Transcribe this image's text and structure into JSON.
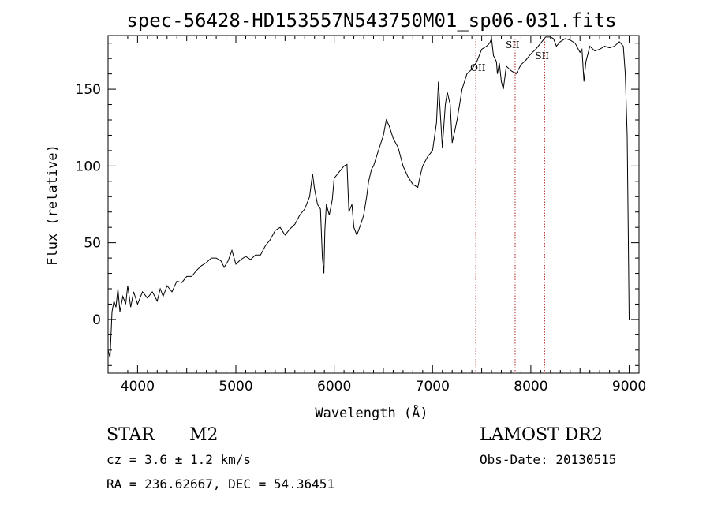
{
  "chart_data": {
    "type": "line",
    "title": "spec-56428-HD153557N543750M01_sp06-031.fits",
    "xlabel": "Wavelength (Å)",
    "ylabel": "Flux (relative)",
    "xlim": [
      3700,
      9100
    ],
    "ylim": [
      -35,
      185
    ],
    "xticks": [
      4000,
      5000,
      6000,
      7000,
      8000,
      9000
    ],
    "yticks": [
      0,
      50,
      100,
      150
    ],
    "grid": false,
    "line_color": "#000000",
    "marker_color": "#b22222",
    "series": [
      {
        "x": [
          3700,
          3720,
          3740,
          3760,
          3780,
          3800,
          3820,
          3850,
          3880,
          3900,
          3930,
          3960,
          4000,
          4050,
          4100,
          4150,
          4200,
          4230,
          4260,
          4300,
          4350,
          4400,
          4450,
          4500,
          4550,
          4600,
          4650,
          4700,
          4750,
          4800,
          4850,
          4880,
          4920,
          4960,
          5000,
          5050,
          5100,
          5150,
          5200,
          5250,
          5300,
          5350,
          5400,
          5450,
          5500,
          5550,
          5600,
          5650,
          5700,
          5750,
          5780,
          5800,
          5830,
          5860,
          5880,
          5895,
          5905,
          5920,
          5950,
          5980,
          6000,
          6050,
          6100,
          6130,
          6150,
          6180,
          6200,
          6230,
          6270,
          6300,
          6330,
          6350,
          6380,
          6400,
          6450,
          6500,
          6530,
          6560,
          6600,
          6650,
          6700,
          6750,
          6800,
          6850,
          6880,
          6900,
          6950,
          7000,
          7040,
          7060,
          7100,
          7130,
          7150,
          7180,
          7200,
          7250,
          7300,
          7350,
          7400,
          7450,
          7500,
          7550,
          7580,
          7600,
          7620,
          7650,
          7660,
          7680,
          7700,
          7720,
          7750,
          7800,
          7850,
          7900,
          7950,
          8000,
          8050,
          8100,
          8150,
          8200,
          8230,
          8260,
          8300,
          8350,
          8400,
          8450,
          8500,
          8520,
          8540,
          8560,
          8600,
          8650,
          8700,
          8750,
          8800,
          8850,
          8900,
          8940,
          8960,
          8980,
          8990,
          9000,
          9005
        ],
        "y": [
          -20,
          -25,
          5,
          12,
          8,
          20,
          5,
          15,
          10,
          22,
          8,
          18,
          10,
          18,
          14,
          18,
          12,
          20,
          15,
          22,
          18,
          25,
          24,
          28,
          28,
          32,
          35,
          37,
          40,
          40,
          38,
          34,
          38,
          45,
          36,
          39,
          41,
          39,
          42,
          42,
          48,
          52,
          58,
          60,
          55,
          59,
          62,
          68,
          72,
          80,
          95,
          85,
          75,
          72,
          40,
          30,
          58,
          75,
          68,
          78,
          92,
          96,
          100,
          101,
          70,
          75,
          60,
          55,
          62,
          68,
          80,
          90,
          98,
          100,
          110,
          120,
          130,
          126,
          118,
          112,
          100,
          93,
          88,
          86,
          95,
          100,
          106,
          110,
          128,
          155,
          112,
          140,
          148,
          140,
          115,
          130,
          150,
          160,
          163,
          168,
          176,
          178,
          180,
          183,
          172,
          168,
          160,
          167,
          155,
          150,
          165,
          162,
          160,
          166,
          169,
          173,
          176,
          180,
          184,
          184,
          183,
          178,
          181,
          183,
          182,
          180,
          174,
          176,
          155,
          168,
          178,
          175,
          176,
          178,
          177,
          178,
          181,
          178,
          160,
          120,
          60,
          0,
          0
        ]
      }
    ],
    "line_markers": [
      {
        "label": "OII",
        "x": 7440
      },
      {
        "label": "SII",
        "x": 7840
      },
      {
        "label": "SII",
        "x": 8140
      }
    ]
  },
  "footer": {
    "object_class": "STAR",
    "subclass": "M2",
    "survey": "LAMOST DR2",
    "cz": "cz = 3.6 ± 1.2 km/s",
    "obs_date": "Obs-Date: 20130515",
    "coords": "RA = 236.62667, DEC =  54.36451"
  }
}
